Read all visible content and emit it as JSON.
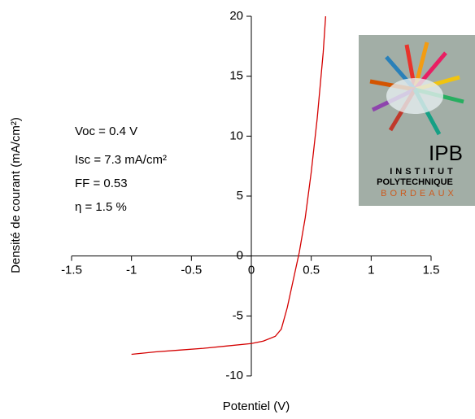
{
  "chart_data": {
    "type": "line",
    "x_label": "Potentiel (V)",
    "y_label": "Densité de courant (mA/cm²)",
    "annotations": [
      "Voc = 0.4 V",
      "Isc = 7.3 mA/cm²",
      "FF = 0.53",
      "η = 1.5 %"
    ],
    "logo_texts": [
      "IPB",
      "INSTITUT",
      "POLYTECHNIQUE",
      "BORDEAUX"
    ],
    "xlim": [
      -1.5,
      1.5
    ],
    "xticks": [
      -1.5,
      -1,
      -0.5,
      0,
      0.5,
      1,
      1.5
    ],
    "ylim": [
      -10,
      20
    ],
    "yticks": [
      -10,
      -5,
      0,
      5,
      10,
      15,
      20
    ],
    "grid": false,
    "series": [
      {
        "color": "#d40000",
        "x": [
          -1,
          -0.8,
          -0.6,
          -0.4,
          -0.2,
          0,
          0.1,
          0.2,
          0.25,
          0.3,
          0.35,
          0.4,
          0.45,
          0.5,
          0.55,
          0.6,
          0.62
        ],
        "values": [
          -8.2,
          -8.0,
          -7.85,
          -7.7,
          -7.5,
          -7.3,
          -7.1,
          -6.7,
          -6.1,
          -4.3,
          -2.0,
          0.3,
          3.2,
          7.0,
          11.5,
          17.0,
          20
        ]
      }
    ]
  }
}
